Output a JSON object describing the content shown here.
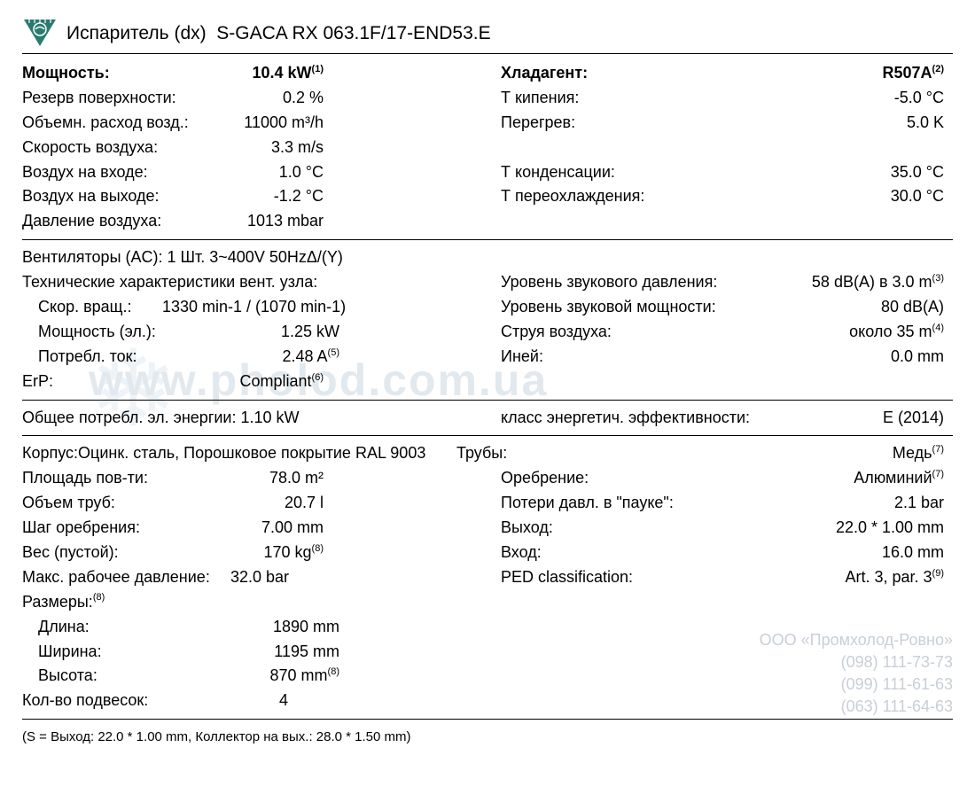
{
  "header": {
    "title_prefix": "Испаритель (dx)",
    "model": "S-GACA RX 063.1F/17-END53.E"
  },
  "section1": {
    "left": [
      {
        "label": "Мощность:",
        "value": "10.4 kW",
        "sup": "(1)",
        "bold": true
      },
      {
        "label": "Резерв поверхности:",
        "value": "0.2 %"
      },
      {
        "label": "Объемн. расход возд.:",
        "value": "11000 m³/h"
      },
      {
        "label": "Скорость воздуха:",
        "value": "3.3 m/s"
      },
      {
        "label": "Воздух на входе:",
        "value": "1.0 °C"
      },
      {
        "label": "Воздух на выходе:",
        "value": "-1.2 °C"
      },
      {
        "label": "Давление воздуха:",
        "value": "1013 mbar"
      }
    ],
    "right": [
      {
        "label": "Хладагент:",
        "value": "R507A",
        "sup": "(2)",
        "bold": true
      },
      {
        "label": "Т кипения:",
        "value": "-5.0 °C"
      },
      {
        "label": "Перегрев:",
        "value": "5.0 K"
      },
      {
        "label": "",
        "value": ""
      },
      {
        "label": "Т конденсации:",
        "value": "35.0 °C"
      },
      {
        "label": "Т переохлаждения:",
        "value": "30.0 °C"
      },
      {
        "label": "",
        "value": ""
      }
    ]
  },
  "section2": {
    "fans_line": "Вентиляторы (AC):  1 Шт. 3~400V 50HzΔ/(Y)",
    "tech_line": "Технические характеристики вент. узла:",
    "left": [
      {
        "label": "Скор. вращ.:",
        "value": "1330 min-1 / (1070 min-1)",
        "indent": true,
        "wide": true
      },
      {
        "label": "Мощность (эл.):",
        "value": "1.25 kW",
        "indent": true
      },
      {
        "label": "Потребл. ток:",
        "value": "2.48 A",
        "sup": "(5)",
        "indent": true
      },
      {
        "label": "ErP:",
        "value": "Compliant",
        "sup": "(6)"
      }
    ],
    "right": [
      {
        "label": "Уровень звукового давления:",
        "value": "58 dB(A) в 3.0 m",
        "sup": "(3)",
        "tight": true
      },
      {
        "label": "Уровень звуковой мощности:",
        "value": "80 dB(A)"
      },
      {
        "label": "Струя воздуха:",
        "value": "около 35 m",
        "sup": "(4)"
      },
      {
        "label": "Иней:",
        "value": "0.0 mm"
      }
    ]
  },
  "section3": {
    "energy_label": "Общее потребл. эл. энергии: 1.10 kW",
    "class_label": "класс энергетич. эффективности:",
    "class_value": "E (2014)"
  },
  "section4": {
    "casing_line_l": "Корпус:Оцинк. сталь, Порошковое покрытие RAL 9003",
    "casing_line_r_label": "Трубы:",
    "casing_line_r_value": "Медь",
    "casing_line_r_sup": "(7)",
    "left": [
      {
        "label": "Площадь пов-ти:",
        "value": "78.0 m²"
      },
      {
        "label": "Объем труб:",
        "value": "20.7 l"
      },
      {
        "label": "Шаг оребрения:",
        "value": "7.00 mm"
      },
      {
        "label": "Вес (пустой):",
        "value": "170 kg",
        "sup": "(8)"
      },
      {
        "label": "Макс. рабочее давление:",
        "value": "32.0 bar",
        "wide": true
      }
    ],
    "right": [
      {
        "label": "Оребрение:",
        "value": "Алюминий",
        "sup": "(7)"
      },
      {
        "label": "Потери давл. в \"пауке\":",
        "value": "2.1 bar"
      },
      {
        "label": "Выход:",
        "value": "22.0 * 1.00 mm"
      },
      {
        "label": "Вход:",
        "value": "16.0 mm"
      },
      {
        "label": "PED classification:",
        "value": "Art. 3, par. 3",
        "sup": "(9)"
      }
    ],
    "dims_label": "Размеры:",
    "dims_sup": "(8)",
    "dims": [
      {
        "label": "Длина:",
        "value": "1890 mm"
      },
      {
        "label": "Ширина:",
        "value": "1195 mm"
      },
      {
        "label": "Высота:",
        "value": "870 mm",
        "sup": "(8)"
      }
    ],
    "hangers_label": "Кол-во подвесок:",
    "hangers_value": "4"
  },
  "footnote": "(S = Выход: 22.0 * 1.00 mm, Коллектор на вых.: 28.0 * 1.50 mm)",
  "company": {
    "name": "ООО «Промхолод-Ровно»",
    "phones": [
      "(098) 111-73-73",
      "(099) 111-61-63",
      "(063) 111-64-63"
    ]
  },
  "watermark": "www.pholod.com.ua",
  "colors": {
    "logo_fill": "#2a7a6f",
    "text": "#000000",
    "border": "#000000",
    "watermark": "#e2e9ee",
    "company": "#c8cfd6"
  }
}
